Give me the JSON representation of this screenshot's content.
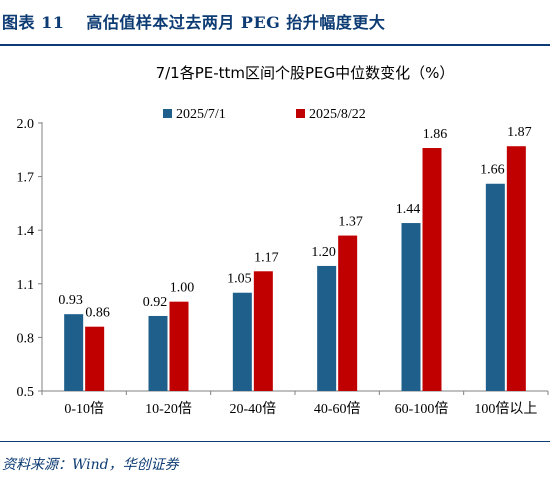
{
  "header": {
    "figure_label": "图表 11",
    "figure_title": "高估值样本过去两月 PEG 抬升幅度更大"
  },
  "source": {
    "text": "资料来源：Wind，华创证券"
  },
  "colors": {
    "accent": "#0d3b73",
    "series_1": "#1f5f8b",
    "series_2": "#c00000"
  },
  "chart_data": {
    "type": "bar",
    "title": "7/1各PE-ttm区间个股PEG中位数变化（%）",
    "xlabel": "",
    "ylabel": "",
    "ylim": [
      0.5,
      2.0
    ],
    "yticks": [
      "2.0",
      "1.7",
      "1.4",
      "1.1",
      "0.8",
      "0.5"
    ],
    "ytick_values": [
      2.0,
      1.7,
      1.4,
      1.1,
      0.8,
      0.5
    ],
    "categories": [
      "0-10倍",
      "10-20倍",
      "20-40倍",
      "40-60倍",
      "60-100倍",
      "100倍以上"
    ],
    "legend_position": "top",
    "grid": false,
    "series": [
      {
        "name": "2025/7/1",
        "values": [
          0.93,
          0.92,
          1.05,
          1.2,
          1.44,
          1.66
        ],
        "labels": [
          "0.93",
          "0.92",
          "1.05",
          "1.20",
          "1.44",
          "1.66"
        ]
      },
      {
        "name": "2025/8/22",
        "values": [
          0.86,
          1.0,
          1.17,
          1.37,
          1.86,
          1.87
        ],
        "labels": [
          "0.86",
          "1.00",
          "1.17",
          "1.37",
          "1.86",
          "1.87"
        ]
      }
    ]
  }
}
